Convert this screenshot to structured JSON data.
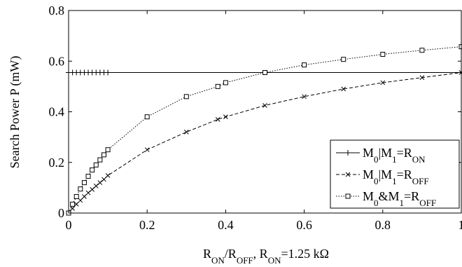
{
  "chart_data": {
    "type": "line",
    "xlabel": "RON/ROFF, RON=1.25 kΩ",
    "ylabel": "Search Power P (mW)",
    "xlim": [
      0,
      1
    ],
    "xticks": [
      0,
      0.2,
      0.4,
      0.6,
      0.8,
      1
    ],
    "ylim": [
      0,
      0.8
    ],
    "yticks": [
      0,
      0.2,
      0.4,
      0.6,
      0.8
    ],
    "legend": "lower right",
    "series": [
      {
        "name": "M0|M1=RON",
        "color": "#000000",
        "style": "solid",
        "marker": "plus",
        "x": [
          0,
          0.01,
          0.02,
          0.03,
          0.04,
          0.05,
          0.06,
          0.07,
          0.08,
          0.09,
          0.1,
          1
        ],
        "values": [
          0.555,
          0.555,
          0.555,
          0.555,
          0.555,
          0.555,
          0.555,
          0.555,
          0.555,
          0.555,
          0.555,
          0.555
        ]
      },
      {
        "name": "M0|M1=ROFF",
        "color": "#000000",
        "style": "dashed",
        "marker": "cross",
        "x": [
          0,
          0.01,
          0.02,
          0.03,
          0.04,
          0.05,
          0.06,
          0.07,
          0.08,
          0.09,
          0.1,
          0.2,
          0.3,
          0.38,
          0.4,
          0.5,
          0.6,
          0.7,
          0.8,
          0.9,
          1
        ],
        "values": [
          0,
          0.018,
          0.035,
          0.05,
          0.065,
          0.08,
          0.093,
          0.107,
          0.12,
          0.133,
          0.148,
          0.25,
          0.32,
          0.37,
          0.38,
          0.425,
          0.46,
          0.49,
          0.515,
          0.535,
          0.555
        ]
      },
      {
        "name": "M0&M1=ROFF",
        "color": "#000000",
        "style": "dotted",
        "marker": "square",
        "x": [
          0,
          0.01,
          0.02,
          0.03,
          0.04,
          0.05,
          0.06,
          0.07,
          0.08,
          0.09,
          0.1,
          0.2,
          0.3,
          0.38,
          0.4,
          0.5,
          0.6,
          0.7,
          0.8,
          0.9,
          1
        ],
        "values": [
          0,
          0.035,
          0.065,
          0.095,
          0.12,
          0.145,
          0.17,
          0.19,
          0.21,
          0.23,
          0.25,
          0.38,
          0.46,
          0.5,
          0.515,
          0.555,
          0.585,
          0.607,
          0.627,
          0.643,
          0.657
        ]
      }
    ]
  }
}
